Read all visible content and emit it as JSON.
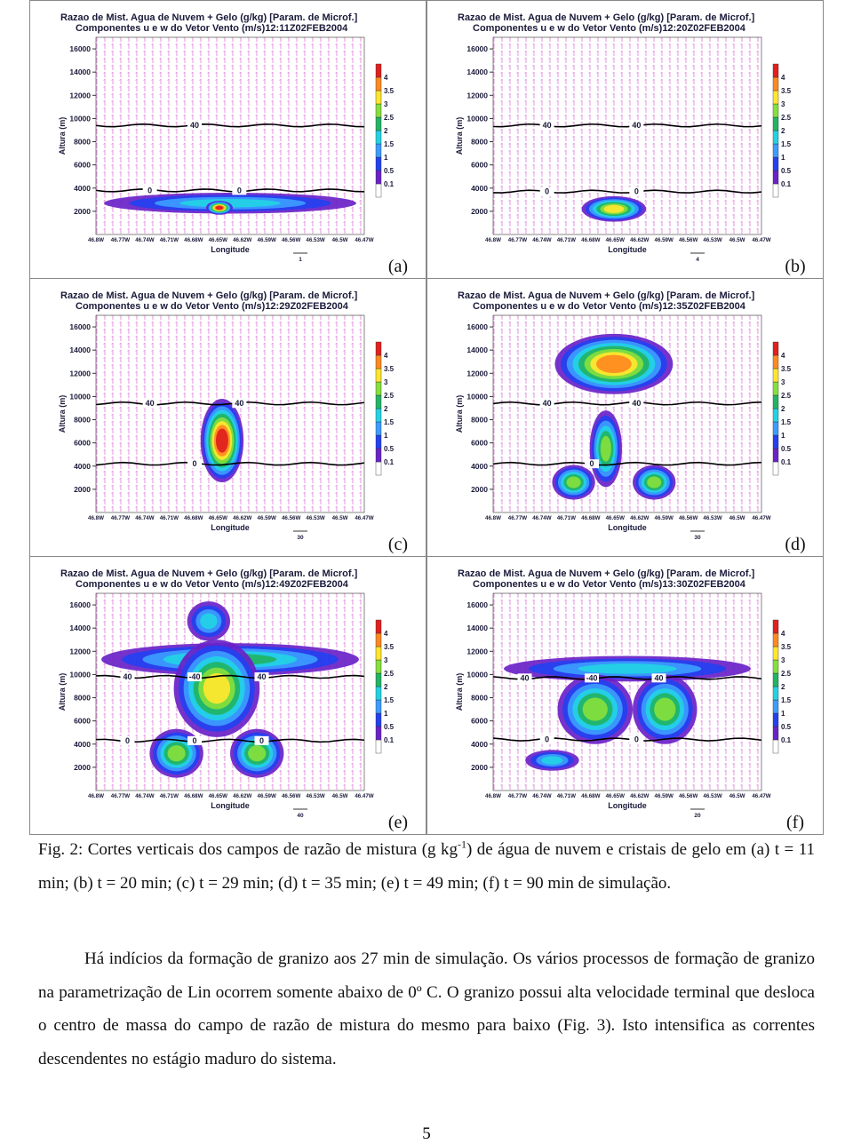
{
  "figure": {
    "shared": {
      "title_line1": "Razao de Mist. Agua de Nuvem + Gelo (g/kg) [Param. de Microf.]",
      "title_line2": "Componentes u e w do Vetor Vento (m/s)",
      "y_label": "Altura (m)",
      "x_label": "Longitude",
      "ylim": [
        0,
        17000
      ],
      "yticks": [
        2000,
        4000,
        6000,
        8000,
        10000,
        12000,
        14000,
        16000
      ],
      "xtick_labels": [
        "46.8W",
        "46.77W",
        "46.74W",
        "46.71W",
        "46.68W",
        "46.65W",
        "46.62W",
        "46.59W",
        "46.56W",
        "46.53W",
        "46.5W",
        "46.47W"
      ],
      "colorbar_ticks": [
        0.1,
        0.5,
        1,
        1.5,
        2,
        2.5,
        3,
        3.5,
        4
      ],
      "colorbar_colors": [
        "#ffffff",
        "#6a22c8",
        "#2440f0",
        "#3c9cff",
        "#22d2e4",
        "#22b464",
        "#84e03c",
        "#ffe62e",
        "#ff8a20",
        "#e0201e"
      ]
    },
    "panels": [
      {
        "label": "(a)",
        "time": "12:11Z02FEB2004",
        "upper_contour_labels": [
          "40"
        ],
        "lower_contour_labels": [
          "0",
          "0"
        ],
        "vector_scale": "1"
      },
      {
        "label": "(b)",
        "time": "12:20Z02FEB2004",
        "upper_contour_labels": [
          "40",
          "40"
        ],
        "lower_contour_labels": [
          "0",
          "0"
        ],
        "vector_scale": "4"
      },
      {
        "label": "(c)",
        "time": "12:29Z02FEB2004",
        "upper_contour_labels": [
          "40",
          "40"
        ],
        "lower_contour_labels": [
          "0"
        ],
        "vector_scale": "30"
      },
      {
        "label": "(d)",
        "time": "12:35Z02FEB2004",
        "upper_contour_labels": [
          "40",
          "40"
        ],
        "lower_contour_labels": [
          "0"
        ],
        "vector_scale": "30"
      },
      {
        "label": "(e)",
        "time": "12:49Z02FEB2004",
        "upper_contour_labels": [
          "40",
          "-40",
          "40"
        ],
        "lower_contour_labels": [
          "0",
          "0",
          "0"
        ],
        "vector_scale": "40"
      },
      {
        "label": "(f)",
        "time": "13:30Z02FEB2004",
        "upper_contour_labels": [
          "40",
          "-40",
          "40"
        ],
        "lower_contour_labels": [
          "0",
          "0"
        ],
        "vector_scale": "20"
      }
    ]
  },
  "caption": {
    "lead": "Fig. 2: Cortes verticais dos campos de razão de mistura (g kg",
    "superscript": "-1",
    "rest": ") de água de nuvem e cristais de gelo em (a) t = 11 min; (b) t = 20 min; (c) t = 29 min; (d) t = 35 min; (e) t = 49 min; (f) t = 90 min de simulação."
  },
  "paragraph": "Há indícios da formação de granizo aos 27 min de simulação. Os vários processos de formação de granizo na parametrização de Lin ocorrem somente abaixo de 0º C. O granizo possui alta velocidade terminal que desloca o centro de massa do campo de razão de mistura do mesmo para baixo (Fig. 3). Isto intensifica as correntes descendentes no estágio maduro do sistema.",
  "page_number": "5"
}
